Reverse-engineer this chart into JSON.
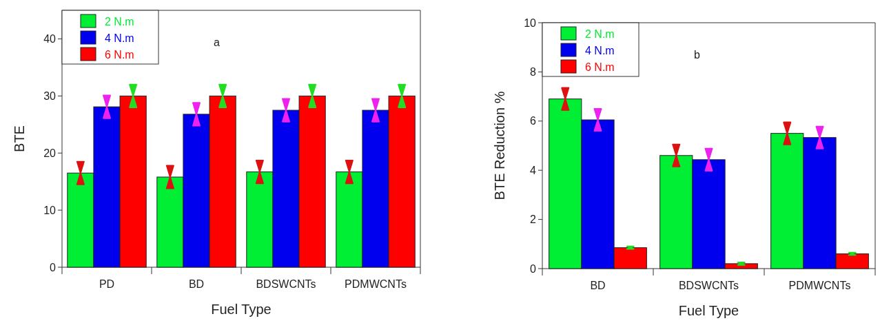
{
  "chart_data": [
    {
      "type": "bar",
      "xlabel": "Fuel Type",
      "ylabel": "BTE",
      "categories": [
        "PD",
        "BD",
        "BDSWCNTs",
        "PDMWCNTs"
      ],
      "series": [
        {
          "name": "2 N.m",
          "color": "#00ee33",
          "values": [
            16.5,
            15.8,
            16.7,
            16.7
          ],
          "errors": [
            2,
            2,
            2,
            2
          ]
        },
        {
          "name": "4 N.m",
          "color": "#0000ee",
          "values": [
            28.1,
            26.8,
            27.5,
            27.5
          ],
          "errors": [
            2,
            2,
            2,
            2
          ]
        },
        {
          "name": "6 N.m",
          "color": "#ff0000",
          "values": [
            30,
            30,
            30,
            30
          ],
          "errors": [
            2,
            2,
            2,
            2
          ]
        }
      ],
      "ylim": [
        0,
        45
      ],
      "yticks": [
        0,
        10,
        20,
        30,
        40
      ],
      "grid": false,
      "legend": "top left",
      "annotations": [
        "a"
      ]
    },
    {
      "type": "bar",
      "xlabel": "Fuel Type",
      "ylabel": "BTE Reduction %",
      "categories": [
        "BD",
        "BDSWCNTs",
        "PDMWCNTs"
      ],
      "series": [
        {
          "name": "2 N.m",
          "color": "#00ee33",
          "values": [
            6.9,
            4.6,
            5.5
          ],
          "errors": [
            0.45,
            0.45,
            0.45
          ]
        },
        {
          "name": "4 N.m",
          "color": "#0000ee",
          "values": [
            6.05,
            4.43,
            5.33
          ],
          "errors": [
            0.45,
            0.45,
            0.45
          ]
        },
        {
          "name": "6 N.m",
          "color": "#ff0000",
          "values": [
            0.85,
            0.2,
            0.6
          ],
          "errors": [
            0.05,
            0.05,
            0.05
          ]
        }
      ],
      "ylim": [
        0,
        10
      ],
      "yticks": [
        0,
        2,
        4,
        6,
        8,
        10
      ],
      "grid": false,
      "legend": "top left",
      "annotations": [
        "b"
      ]
    }
  ]
}
